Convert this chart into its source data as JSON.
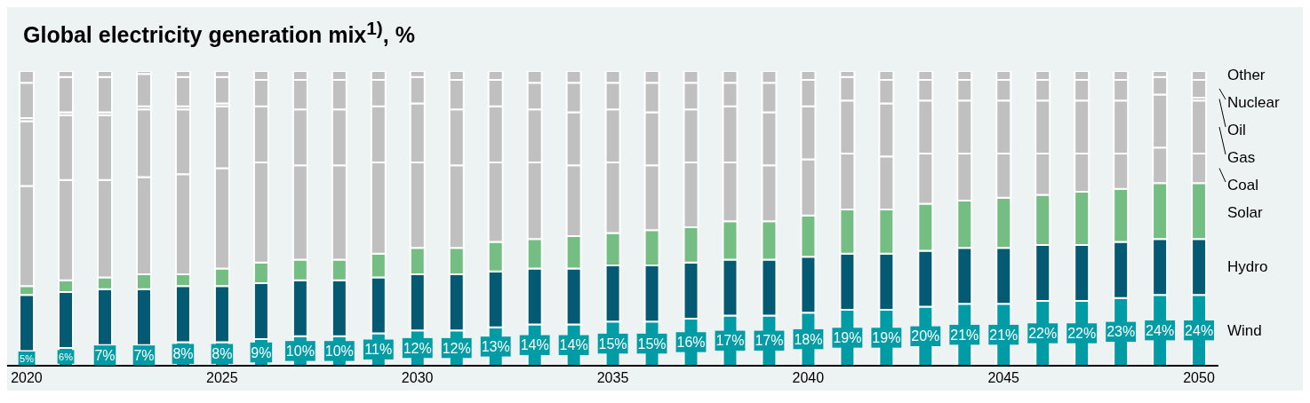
{
  "chart_data": {
    "type": "bar",
    "stacked": true,
    "title": "Global electricity generation mix$^{1)}$, %",
    "categories": [
      "2020",
      null,
      null,
      null,
      null,
      "2025",
      null,
      null,
      null,
      null,
      "2030",
      null,
      null,
      null,
      null,
      "2035",
      null,
      null,
      null,
      null,
      "2040",
      null,
      null,
      null,
      null,
      "2045",
      null,
      null,
      null,
      null,
      "2050"
    ],
    "series": [
      {
        "name": "Wind",
        "color": "#009ca6",
        "values": [
          5,
          6,
          7,
          7,
          8,
          8,
          9,
          10,
          10,
          11,
          12,
          12,
          13,
          14,
          14,
          15,
          15,
          16,
          17,
          17,
          18,
          19,
          19,
          20,
          21,
          21,
          22,
          22,
          23,
          24,
          24
        ],
        "value_labels": [
          "5%",
          "6%",
          "7%",
          "7%",
          "8%",
          "8%",
          "9%",
          "10%",
          "10%",
          "11%",
          "12%",
          "12%",
          "13%",
          "14%",
          "14%",
          "15%",
          "15%",
          "16%",
          "17%",
          "17%",
          "18%",
          "19%",
          "19%",
          "20%",
          "21%",
          "21%",
          "22%",
          "22%",
          "23%",
          "24%",
          "24%"
        ]
      },
      {
        "name": "Hydro",
        "color": "#045a72",
        "values": [
          19,
          19,
          19,
          19,
          19,
          19,
          19,
          19,
          19,
          19,
          19,
          19,
          19,
          19,
          19,
          19,
          19,
          19,
          19,
          19,
          19,
          19,
          19,
          19,
          19,
          19,
          19,
          19,
          19,
          19,
          19
        ]
      },
      {
        "name": "Solar",
        "color": "#74be84",
        "values": [
          3,
          4,
          4,
          5,
          4,
          6,
          7,
          7,
          7,
          8,
          9,
          9,
          10,
          10,
          11,
          11,
          12,
          12,
          13,
          13,
          14,
          15,
          15,
          16,
          16,
          17,
          17,
          18,
          18,
          19,
          19
        ]
      },
      {
        "name": "Coal",
        "color": "#c0c0c0",
        "values": [
          34,
          34,
          33,
          33,
          34,
          34,
          34,
          32,
          32,
          31,
          29,
          28,
          27,
          26,
          24,
          24,
          22,
          22,
          20,
          19,
          19,
          19,
          18,
          17,
          16,
          15,
          14,
          13,
          12,
          12,
          10
        ]
      },
      {
        "name": "Gas",
        "color": "#c0c0c0",
        "values": [
          22,
          22,
          22,
          23,
          22,
          21,
          19,
          19,
          19,
          19,
          20,
          19,
          19,
          18,
          18,
          18,
          18,
          18,
          19,
          18,
          18,
          18,
          18,
          18,
          18,
          18,
          18,
          18,
          18,
          18,
          18
        ]
      },
      {
        "name": "Oil",
        "color": "#c0c0c0",
        "values": [
          1,
          1,
          1,
          1,
          1,
          1,
          0,
          0,
          0,
          0,
          0,
          0,
          0,
          0,
          0,
          0,
          0,
          0,
          0,
          0,
          0,
          0,
          0,
          0,
          0,
          0,
          0,
          0,
          0,
          0,
          1
        ]
      },
      {
        "name": "Nuclear",
        "color": "#c0c0c0",
        "values": [
          12,
          12,
          12,
          11,
          10,
          9,
          9,
          10,
          10,
          9,
          9,
          10,
          9,
          9,
          10,
          9,
          10,
          9,
          8,
          10,
          9,
          8,
          8,
          7,
          7,
          7,
          7,
          7,
          7,
          6,
          6
        ]
      },
      {
        "name": "Other",
        "color": "#c0c0c0",
        "values": [
          4,
          2,
          2,
          1,
          2,
          2,
          3,
          3,
          3,
          3,
          2,
          3,
          3,
          4,
          4,
          4,
          4,
          4,
          4,
          4,
          3,
          2,
          3,
          3,
          3,
          3,
          3,
          3,
          3,
          2,
          3
        ]
      }
    ],
    "ylim": [
      0,
      100
    ],
    "tick_labels": "x"
  }
}
